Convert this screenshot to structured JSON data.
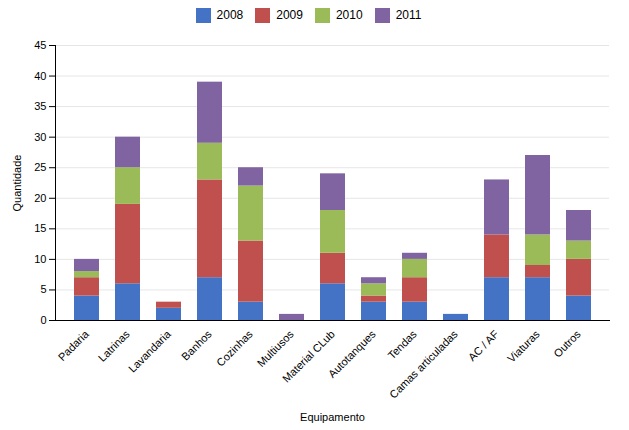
{
  "chart_data": {
    "type": "bar",
    "stacked": true,
    "xlabel": "Equipamento",
    "ylabel": "Quantidade",
    "categories": [
      "Padaria",
      "Latrinas",
      "Lavandaria",
      "Banhos",
      "Cozinhas",
      "Multiusos",
      "Material CLub",
      "Autotanques",
      "Tendas",
      "Camas articuladas",
      "AC / AF",
      "Viaturas",
      "Outros"
    ],
    "series": [
      {
        "name": "2008",
        "color": "#4472C4",
        "values": [
          4,
          6,
          2,
          7,
          3,
          0,
          6,
          3,
          3,
          1,
          7,
          7,
          4
        ]
      },
      {
        "name": "2009",
        "color": "#C0504D",
        "values": [
          3,
          13,
          1,
          16,
          10,
          0,
          5,
          1,
          4,
          0,
          7,
          2,
          6
        ]
      },
      {
        "name": "2010",
        "color": "#9BBB59",
        "values": [
          1,
          6,
          0,
          6,
          9,
          0,
          7,
          2,
          3,
          0,
          0,
          5,
          3
        ]
      },
      {
        "name": "2011",
        "color": "#8064A2",
        "values": [
          2,
          5,
          0,
          10,
          3,
          1,
          6,
          1,
          1,
          0,
          9,
          13,
          5
        ]
      }
    ],
    "ylim": [
      0,
      45
    ],
    "yticks": [
      0,
      5,
      10,
      15,
      20,
      25,
      30,
      35,
      40,
      45
    ],
    "grid": true,
    "legend": "top"
  }
}
